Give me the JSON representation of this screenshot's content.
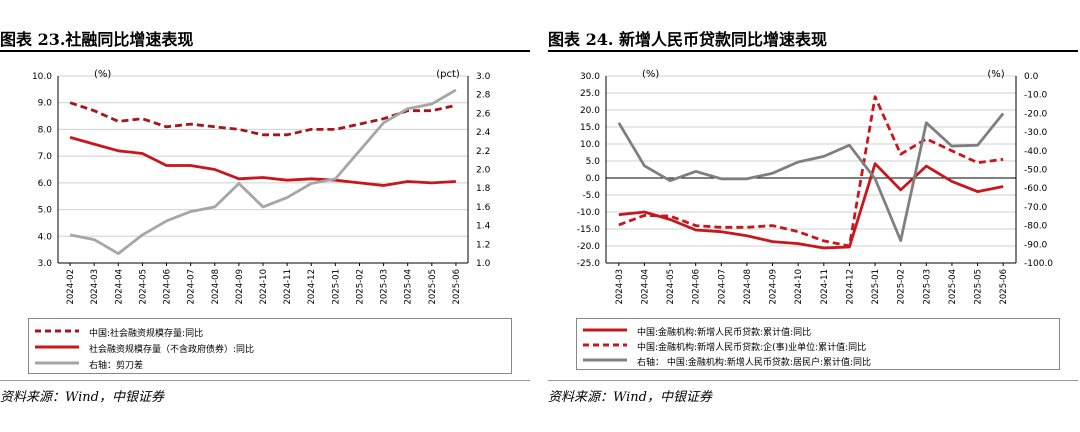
{
  "figures": [
    {
      "title": "图表 23.社融同比增速表现",
      "source": "资料来源：Wind，中银证券",
      "chart_data": {
        "type": "line",
        "categories": [
          "2024-02",
          "2024-03",
          "2024-04",
          "2024-05",
          "2024-06",
          "2024-07",
          "2024-08",
          "2024-09",
          "2024-10",
          "2024-11",
          "2024-12",
          "2025-01",
          "2025-02",
          "2025-03",
          "2025-04",
          "2025-05",
          "2025-06"
        ],
        "ylabel_left": "(%)",
        "ylabel_right": "(pct)",
        "ylim_left": [
          3.0,
          10.0
        ],
        "yticks_left": [
          "3.0",
          "4.0",
          "5.0",
          "6.0",
          "7.0",
          "8.0",
          "9.0",
          "10.0"
        ],
        "ylim_right": [
          1.0,
          3.0
        ],
        "yticks_right": [
          "1.0",
          "1.2",
          "1.4",
          "1.6",
          "1.8",
          "2.0",
          "2.2",
          "2.4",
          "2.6",
          "2.8",
          "3.0"
        ],
        "grid": true,
        "legend_position": "bottom",
        "series": [
          {
            "name": "中国:社会融资规模存量:同比",
            "axis": "left",
            "style": "dashed",
            "color": "#a3171c",
            "values": [
              9.0,
              8.7,
              8.3,
              8.4,
              8.1,
              8.2,
              8.1,
              8.0,
              7.8,
              7.8,
              8.0,
              8.0,
              8.2,
              8.4,
              8.7,
              8.7,
              8.9
            ]
          },
          {
            "name": "社会融资规模存量（不含政府债券）:同比",
            "axis": "left",
            "style": "solid",
            "color": "#c8161d",
            "values": [
              7.7,
              7.45,
              7.2,
              7.1,
              6.65,
              6.65,
              6.5,
              6.15,
              6.2,
              6.1,
              6.15,
              6.1,
              6.0,
              5.9,
              6.05,
              6.0,
              6.05
            ]
          },
          {
            "name": "右轴：剪刀差",
            "axis": "right",
            "style": "solid",
            "color": "#a6a6a6",
            "values": [
              1.3,
              1.25,
              1.1,
              1.3,
              1.45,
              1.55,
              1.6,
              1.85,
              1.6,
              1.7,
              1.85,
              1.9,
              2.2,
              2.5,
              2.65,
              2.7,
              2.85
            ]
          }
        ]
      }
    },
    {
      "title": "图表 24. 新增人民币贷款同比增速表现",
      "source": "资料来源：Wind，中银证券",
      "chart_data": {
        "type": "line",
        "categories": [
          "2024-03",
          "2024-04",
          "2024-05",
          "2024-06",
          "2024-07",
          "2024-08",
          "2024-09",
          "2024-10",
          "2024-11",
          "2024-12",
          "2025-01",
          "2025-02",
          "2025-03",
          "2025-04",
          "2025-05",
          "2025-06"
        ],
        "ylabel_left": "(%)",
        "ylabel_right": "(%)",
        "ylim_left": [
          -25.0,
          30.0
        ],
        "yticks_left": [
          "-25.0",
          "-20.0",
          "-15.0",
          "-10.0",
          "-5.0",
          "0.0",
          "5.0",
          "10.0",
          "15.0",
          "20.0",
          "25.0",
          "30.0"
        ],
        "ylim_right": [
          -100.0,
          0.0
        ],
        "yticks_right": [
          "-100.0",
          "-90.0",
          "-80.0",
          "-70.0",
          "-60.0",
          "-50.0",
          "-40.0",
          "-30.0",
          "-20.0",
          "-10.0",
          "0.0"
        ],
        "grid": true,
        "legend_position": "bottom",
        "series": [
          {
            "name": "中国:金融机构:新增人民币贷款:累计值:同比",
            "axis": "left",
            "style": "solid",
            "color": "#c8161d",
            "values": [
              -10.8,
              -10.0,
              -12.2,
              -15.3,
              -15.8,
              -17.0,
              -18.7,
              -19.3,
              -20.6,
              -20.3,
              4.2,
              -3.5,
              3.5,
              -1.0,
              -4.0,
              -2.5
            ]
          },
          {
            "name": "中国:金融机构:新增人民币贷款:企(事)业单位:累计值:同比",
            "axis": "left",
            "style": "dashed",
            "color": "#c8161d",
            "values": [
              -13.8,
              -11.0,
              -11.2,
              -14.0,
              -14.5,
              -14.5,
              -14.0,
              -15.8,
              -18.5,
              -20.0,
              23.9,
              7.0,
              11.5,
              8.0,
              4.5,
              5.5
            ]
          },
          {
            "name": "右轴： 中国:金融机构:新增人民币贷款:居民户:累计值:同比",
            "axis": "right",
            "style": "solid",
            "color": "#7f7f7f",
            "values": [
              -25.0,
              -48.0,
              -56.0,
              -51.0,
              -55.0,
              -55.0,
              -52.0,
              -46.0,
              -43.0,
              -37.0,
              -55.0,
              -88.0,
              -25.0,
              -37.5,
              -37.0,
              -20.0
            ]
          }
        ]
      }
    }
  ]
}
